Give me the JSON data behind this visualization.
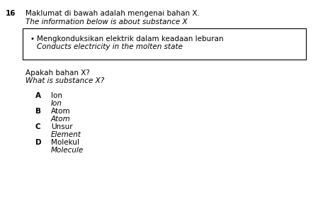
{
  "question_number": "16",
  "title_malay": "Maklumat di bawah adalah mengenai bahan X.",
  "title_english": "The information below is about substance X",
  "box_bullet_malay": "Mengkonduksikan elektrik dalam keadaan leburan",
  "box_bullet_english": "Conducts electricity in the molten state",
  "question_malay": "Apakah bahan X?",
  "question_english": "What is substance X?",
  "options": [
    {
      "letter": "A",
      "malay": "Ion",
      "english": "Ion"
    },
    {
      "letter": "B",
      "malay": "Atom",
      "english": "Atom"
    },
    {
      "letter": "C",
      "malay": "Unsur",
      "english": "Element"
    },
    {
      "letter": "D",
      "malay": "Molekul",
      "english": "Molecule"
    }
  ],
  "bg_color": "#ffffff",
  "text_color": "#000000",
  "box_color": "#ffffff",
  "box_edge_color": "#000000",
  "fontsize": 7.5
}
